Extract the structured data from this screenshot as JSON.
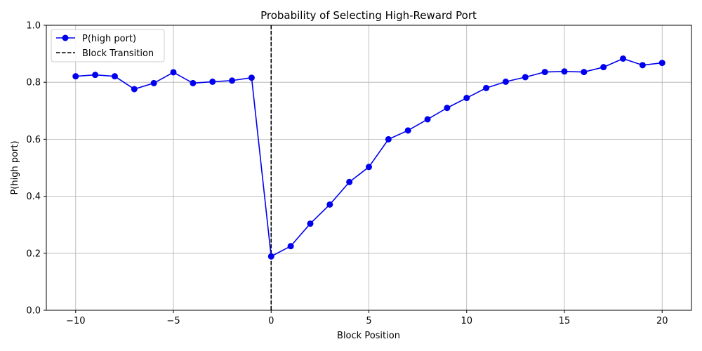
{
  "chart_data": {
    "type": "line",
    "title": "Probability of Selecting High-Reward Port",
    "xlabel": "Block Position",
    "ylabel": "P(high port)",
    "xlim": [
      -11.5,
      21.5
    ],
    "ylim": [
      0,
      1.0
    ],
    "x_ticks": [
      -10,
      -5,
      0,
      5,
      10,
      15,
      20
    ],
    "x_tick_labels": [
      "−10",
      "−5",
      "0",
      "5",
      "10",
      "15",
      "20"
    ],
    "y_ticks": [
      0,
      0.2,
      0.4,
      0.6,
      0.8,
      1.0
    ],
    "y_tick_labels": [
      "0.0",
      "0.2",
      "0.4",
      "0.6",
      "0.8",
      "1.0"
    ],
    "grid": true,
    "legend_position": "top-left",
    "series": [
      {
        "name": "P(high port)",
        "color": "#0000ee",
        "marker": "circle",
        "x": [
          -10,
          -9,
          -8,
          -7,
          -6,
          -5,
          -4,
          -3,
          -2,
          -1,
          0,
          1,
          2,
          3,
          4,
          5,
          6,
          7,
          8,
          9,
          10,
          11,
          12,
          13,
          14,
          15,
          16,
          17,
          18,
          19,
          20
        ],
        "y": [
          0.821,
          0.826,
          0.821,
          0.776,
          0.797,
          0.835,
          0.797,
          0.802,
          0.806,
          0.816,
          0.189,
          0.225,
          0.304,
          0.371,
          0.45,
          0.503,
          0.6,
          0.631,
          0.67,
          0.71,
          0.745,
          0.78,
          0.802,
          0.818,
          0.836,
          0.838,
          0.836,
          0.853,
          0.883,
          0.86,
          0.868
        ]
      }
    ],
    "vline": {
      "name": "Block Transition",
      "x": 0,
      "color": "#000000",
      "style": "dashed"
    }
  }
}
